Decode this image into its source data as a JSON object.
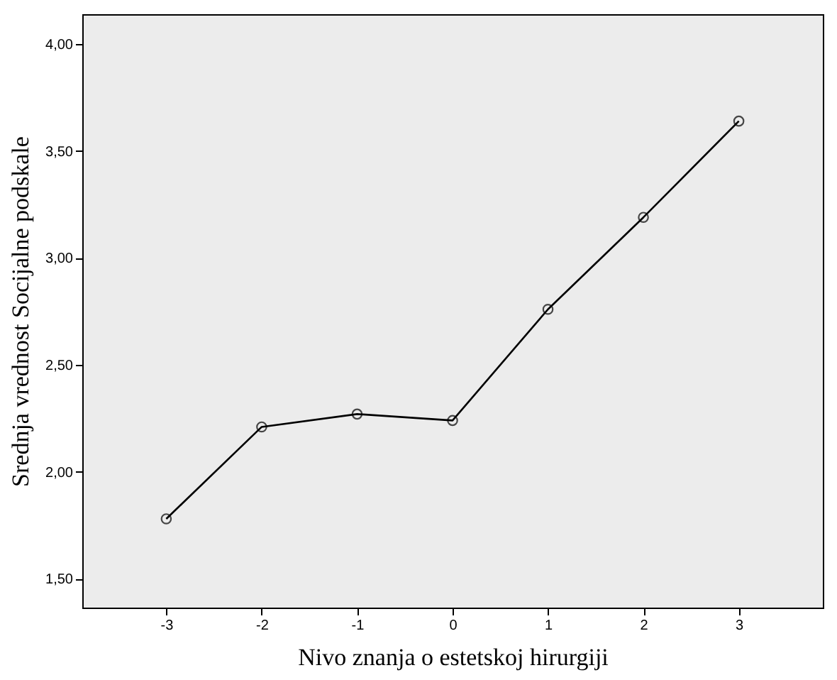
{
  "chart_data": {
    "type": "line",
    "xlabel": "Nivo znanja o estetskoj hirurgiji",
    "ylabel": "Srednja vrednost Socijalne podskale",
    "x": [
      -3,
      -2,
      -1,
      0,
      1,
      2,
      3
    ],
    "series": [
      {
        "color": "#000000",
        "values": [
          1.78,
          2.21,
          2.27,
          2.24,
          2.76,
          3.19,
          3.64
        ]
      }
    ],
    "xlim": [
      -3.88,
      3.88
    ],
    "xticks": [
      -3,
      -2,
      -1,
      0,
      1,
      2,
      3
    ],
    "ylim": [
      1.365,
      4.14
    ],
    "yticks": [
      {
        "value": 1.5,
        "label": "1,50"
      },
      {
        "value": 2,
        "label": "2,00"
      },
      {
        "value": 2.5,
        "label": "2,50"
      },
      {
        "value": 3,
        "label": "3,00"
      },
      {
        "value": 3.5,
        "label": "3,50"
      },
      {
        "value": 4,
        "label": "4,00"
      }
    ],
    "marker": "circle",
    "line_style": "solid",
    "grid": false
  }
}
